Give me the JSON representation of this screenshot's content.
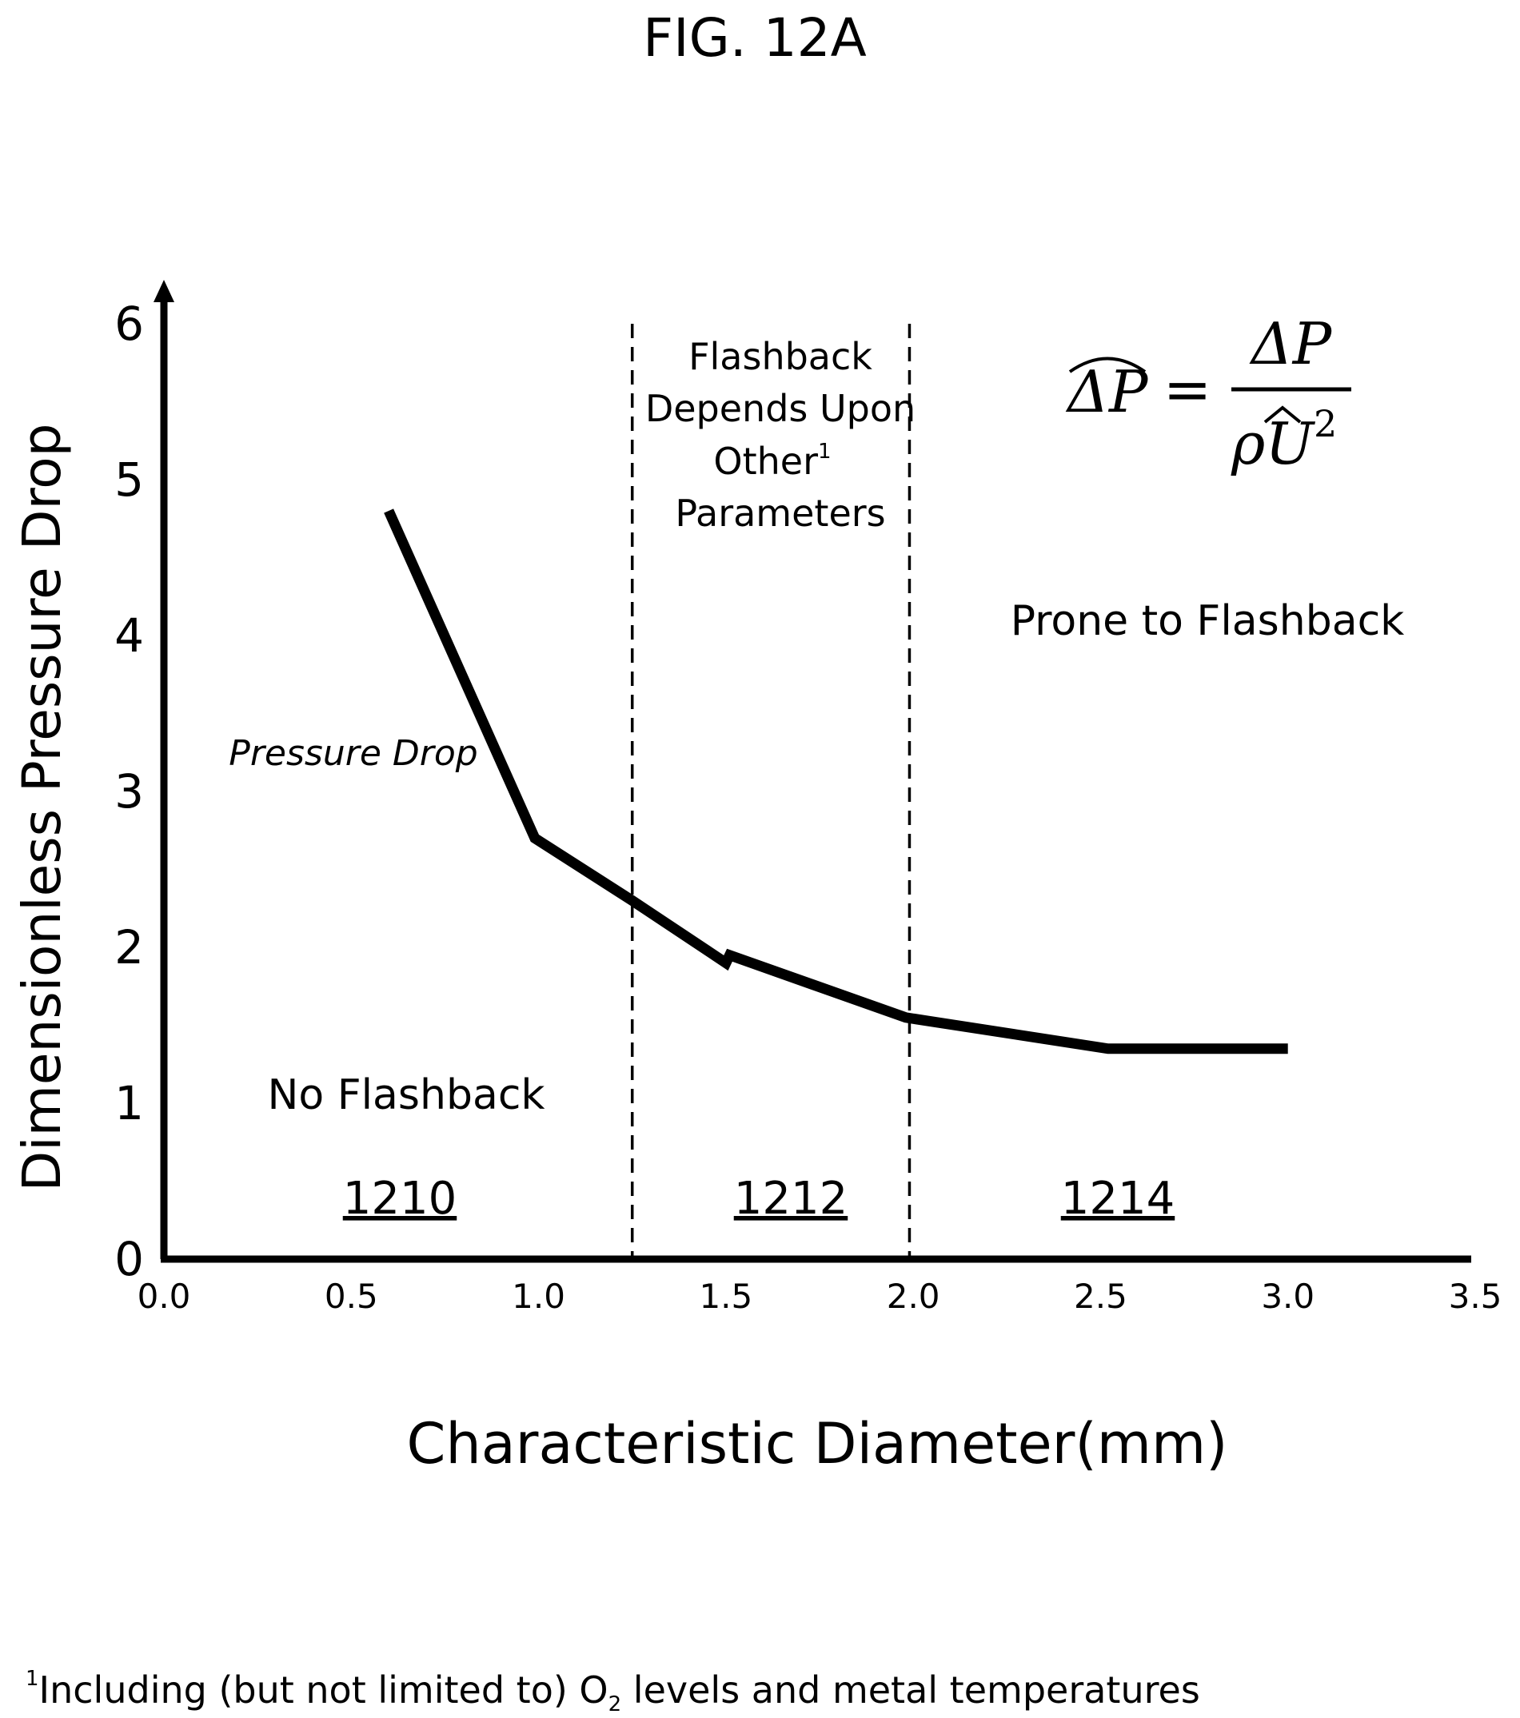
{
  "figure_label": "FIG. 12A",
  "footnote": {
    "marker": "1",
    "text_before": "Including (but not limited to) O",
    "subscript": "2",
    "text_after": " levels and metal temperatures"
  },
  "formula": {
    "lhs": "ΔP",
    "equals": "=",
    "numerator": "ΔP",
    "denominator_rho": "ρ",
    "denominator_u": "U",
    "exponent": "2"
  },
  "regions": {
    "left": {
      "text": "No Flashback",
      "ref": "1210"
    },
    "middle": {
      "lines": [
        "Flashback",
        "Depends Upon",
        "Other",
        "Parameters"
      ],
      "superscript": "1",
      "ref": "1212"
    },
    "right": {
      "text": "Prone to Flashback",
      "ref": "1214"
    }
  },
  "curve_label": "Pressure Drop",
  "chart_data": {
    "type": "line",
    "xlabel": "Characteristic Diameter(mm)",
    "ylabel": "Dimensionless Pressure Drop",
    "xlim": [
      0.0,
      3.5
    ],
    "ylim": [
      0,
      6
    ],
    "x_ticks": [
      "0.0",
      "0.5",
      "1.0",
      "1.5",
      "2.0",
      "2.5",
      "3.0",
      "3.5"
    ],
    "y_ticks": [
      "0",
      "1",
      "2",
      "3",
      "4",
      "5",
      "6"
    ],
    "grid": false,
    "boundaries": [
      1.25,
      1.99
    ],
    "series": [
      {
        "name": "Pressure Drop",
        "x": [
          0.6,
          0.99,
          1.25,
          1.5,
          1.51,
          1.98,
          2.52,
          3.0
        ],
        "y": [
          4.8,
          2.7,
          2.3,
          1.9,
          1.95,
          1.55,
          1.35,
          1.35
        ]
      }
    ]
  }
}
